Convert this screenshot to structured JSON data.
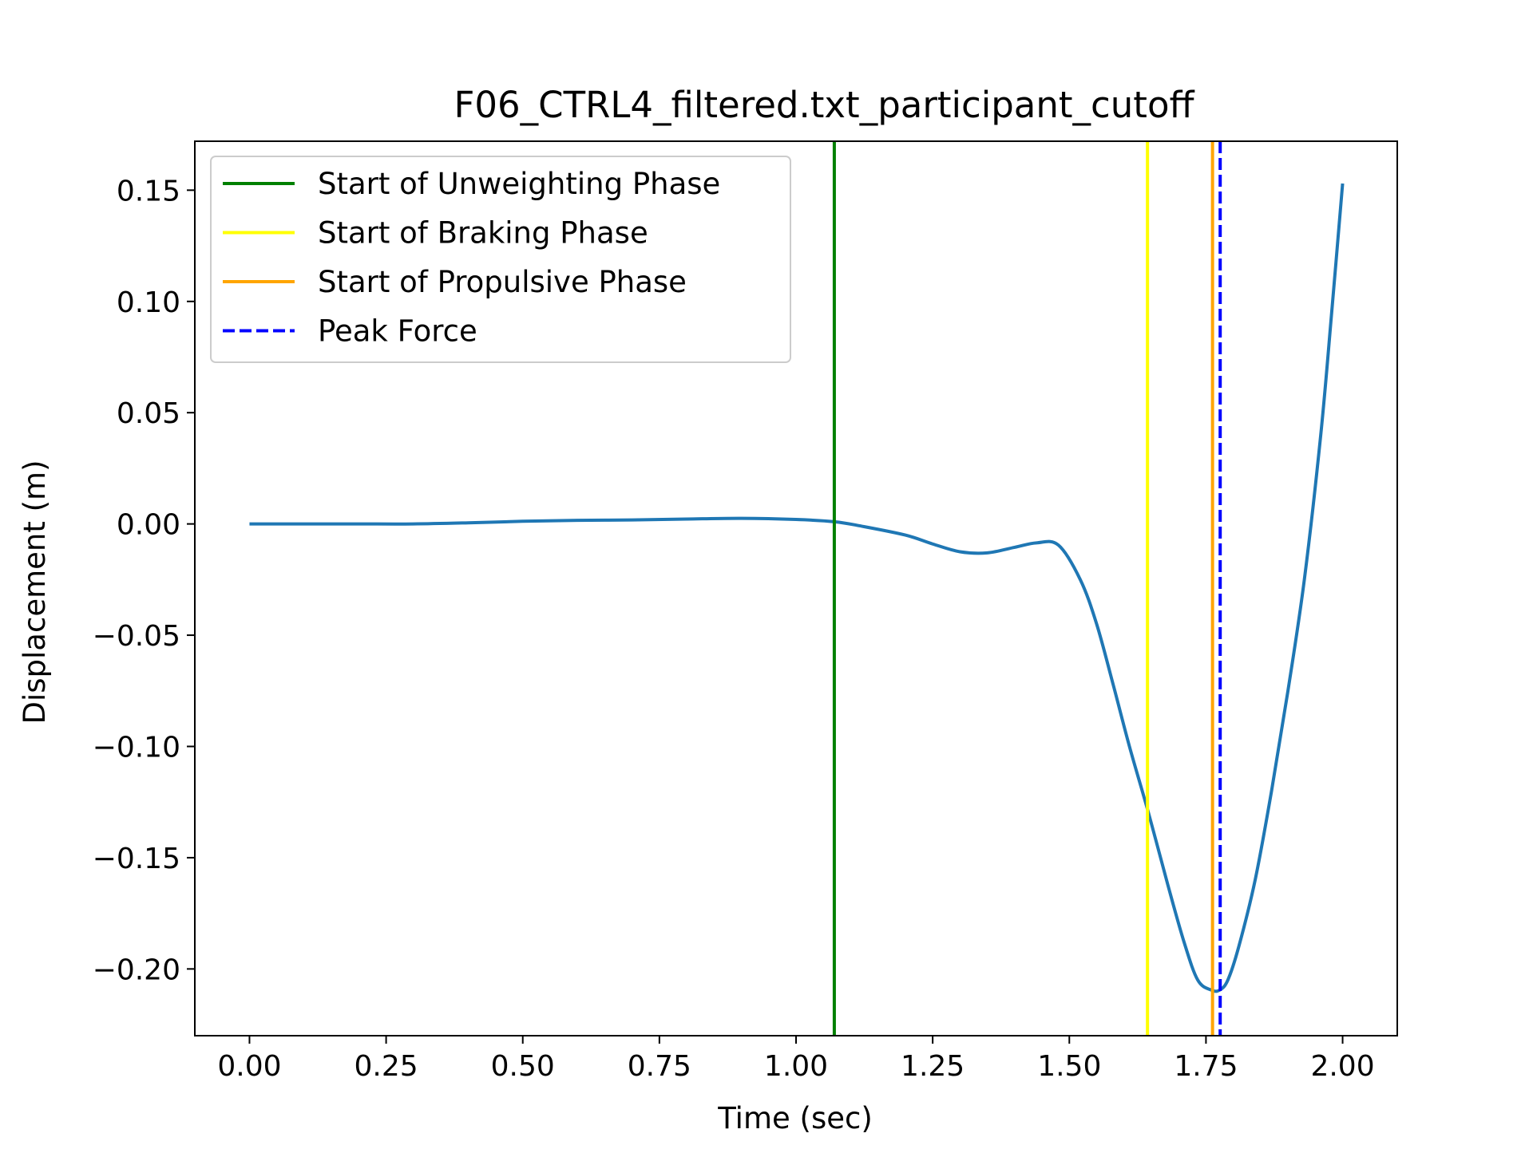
{
  "chart_data": {
    "type": "line",
    "title": "F06_CTRL4_filtered.txt_participant_cutoff",
    "xlabel": "Time (sec)",
    "ylabel": "Displacement (m)",
    "xlim": [
      -0.1,
      2.1
    ],
    "ylim": [
      -0.23,
      0.172
    ],
    "x_ticks": [
      0.0,
      0.25,
      0.5,
      0.75,
      1.0,
      1.25,
      1.5,
      1.75,
      2.0
    ],
    "x_tick_labels": [
      "0.00",
      "0.25",
      "0.50",
      "0.75",
      "1.00",
      "1.25",
      "1.50",
      "1.75",
      "2.00"
    ],
    "y_ticks": [
      0.15,
      0.1,
      0.05,
      0.0,
      -0.05,
      -0.1,
      -0.15,
      -0.2
    ],
    "y_tick_labels": [
      "0.15",
      "0.10",
      "0.05",
      "0.00",
      "−0.05",
      "−0.10",
      "−0.15",
      "−0.20"
    ],
    "grid": false,
    "legend_position": "top-left",
    "series": [
      {
        "color": "#1f77b4",
        "x": [
          0.0,
          0.1,
          0.2,
          0.3,
          0.4,
          0.5,
          0.6,
          0.7,
          0.8,
          0.9,
          1.0,
          1.07,
          1.12,
          1.2,
          1.25,
          1.3,
          1.35,
          1.4,
          1.44,
          1.48,
          1.52,
          1.55,
          1.58,
          1.61,
          1.645,
          1.68,
          1.71,
          1.735,
          1.76,
          1.775,
          1.79,
          1.81,
          1.84,
          1.87,
          1.9,
          1.93,
          1.96,
          1.98,
          2.0
        ],
        "y": [
          0.0,
          0.0,
          0.0,
          0.0,
          0.0005,
          0.0012,
          0.0016,
          0.0018,
          0.0022,
          0.0025,
          0.002,
          0.001,
          -0.001,
          -0.005,
          -0.009,
          -0.0125,
          -0.013,
          -0.0105,
          -0.0085,
          -0.0095,
          -0.025,
          -0.045,
          -0.072,
          -0.1,
          -0.13,
          -0.162,
          -0.188,
          -0.205,
          -0.2095,
          -0.2095,
          -0.205,
          -0.19,
          -0.16,
          -0.12,
          -0.075,
          -0.025,
          0.04,
          0.095,
          0.153
        ]
      }
    ],
    "vlines": [
      {
        "name": "Start of Unweighting Phase",
        "x": 1.07,
        "color": "#008000",
        "style": "solid"
      },
      {
        "name": "Start of Braking Phase",
        "x": 1.643,
        "color": "#ffff00",
        "style": "solid"
      },
      {
        "name": "Start of Propulsive Phase",
        "x": 1.762,
        "color": "#ffa500",
        "style": "solid"
      },
      {
        "name": "Peak Force",
        "x": 1.776,
        "color": "#0000ff",
        "style": "dashed"
      }
    ]
  }
}
